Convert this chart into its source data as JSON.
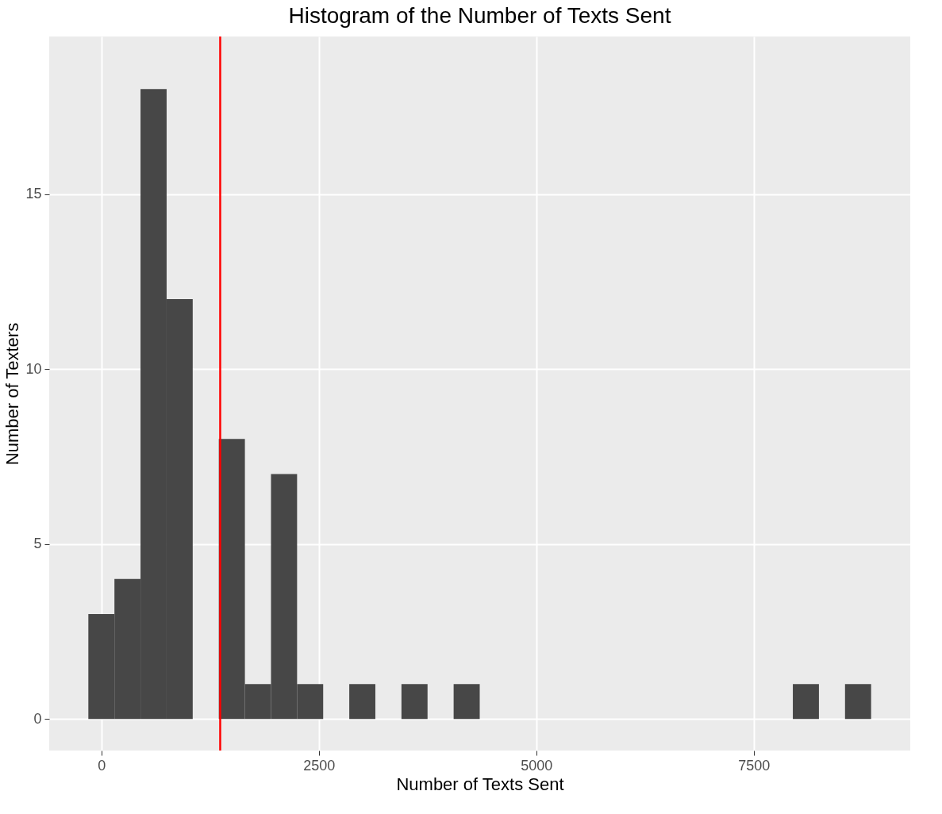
{
  "chart_data": {
    "type": "histogram",
    "title": "Histogram of the Number of Texts Sent",
    "xlabel": "Number of Texts Sent",
    "ylabel": "Number of Texters",
    "bins": [
      -150,
      150,
      450,
      750,
      1050,
      1350,
      1650,
      1950,
      2250,
      2550,
      2850,
      3150,
      3450,
      3750,
      4050,
      4350,
      4650,
      4950,
      5250,
      5550,
      5850,
      6150,
      6450,
      6750,
      7050,
      7350,
      7650,
      7950,
      8250,
      8550,
      8850
    ],
    "values": [
      3,
      4,
      18,
      12,
      0,
      8,
      1,
      7,
      1,
      0,
      1,
      0,
      1,
      0,
      1,
      0,
      0,
      0,
      0,
      0,
      0,
      0,
      0,
      0,
      0,
      0,
      0,
      1,
      0,
      1
    ],
    "color": "#474747",
    "xlim": [
      -600,
      9300
    ],
    "xticks": [
      0,
      2500,
      5000,
      7500
    ],
    "ylim": [
      -0.9,
      19.5
    ],
    "yticks": [
      0,
      5,
      10,
      15
    ],
    "grid": true,
    "ref_lines": [
      {
        "axis": "x",
        "value": 1366,
        "color": "#ff0000"
      }
    ]
  }
}
